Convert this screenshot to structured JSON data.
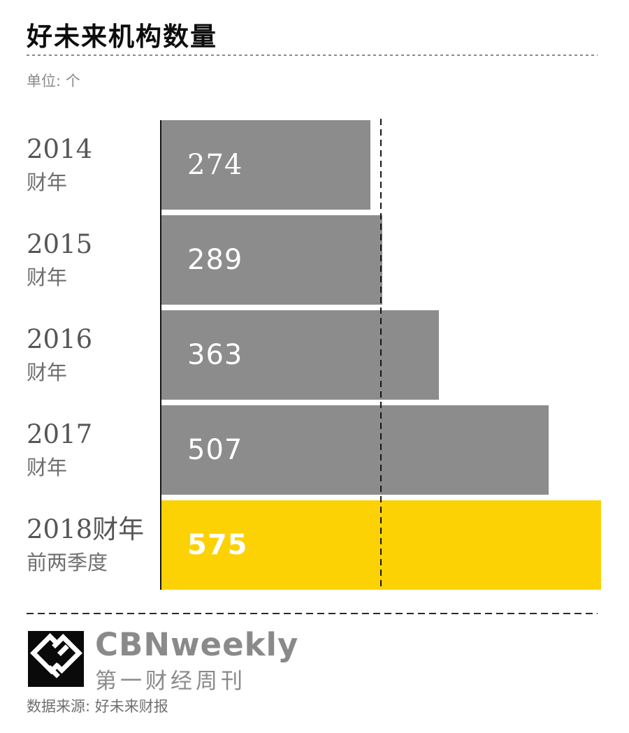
{
  "header": {
    "title": "好未来机构数量",
    "unit_label": "单位: 个"
  },
  "colors": {
    "bar_gray": "#8C8C8C",
    "bar_highlight": "#FCD205",
    "axis": "#151515",
    "separator_gray": "#8A8A8A",
    "separator_dark": "#2B2B2B",
    "title_text": "#0D0D0D",
    "year_text": "#565656",
    "period_text": "#6E6E6E",
    "muted_text": "#8A8A8A",
    "source_text": "#6F6F6F",
    "value_text": "#FFFFFF"
  },
  "chart_data": {
    "type": "bar",
    "orientation": "horizontal",
    "title": "好未来机构数量",
    "unit": "个",
    "categories": [
      "2014财年",
      "2015财年",
      "2016财年",
      "2017财年",
      "2018财年前两季度"
    ],
    "values": [
      274,
      289,
      363,
      507,
      575
    ],
    "xlim": [
      0,
      575
    ],
    "highlight_index": 4,
    "bar_color": "#8C8C8C",
    "highlight_color": "#FCD205",
    "gridline_value": 287.5,
    "gridline_style": "dashed-vertical",
    "value_label_position": "inside-start",
    "legend": "none",
    "grid": "off",
    "rows": [
      {
        "year": "2014",
        "period": "财年",
        "value_label": "274"
      },
      {
        "year": "2015",
        "period": "财年",
        "value_label": "289"
      },
      {
        "year": "2016",
        "period": "财年",
        "value_label": "363"
      },
      {
        "year": "2017",
        "period": "财年",
        "value_label": "507"
      },
      {
        "year": "2018财年",
        "period": "前两季度",
        "value_label": "575"
      }
    ]
  },
  "footer": {
    "logo_name": "CBNweekly",
    "logo_subtitle": "第一财经周刊",
    "source_label": "数据来源: 好未来财报"
  }
}
